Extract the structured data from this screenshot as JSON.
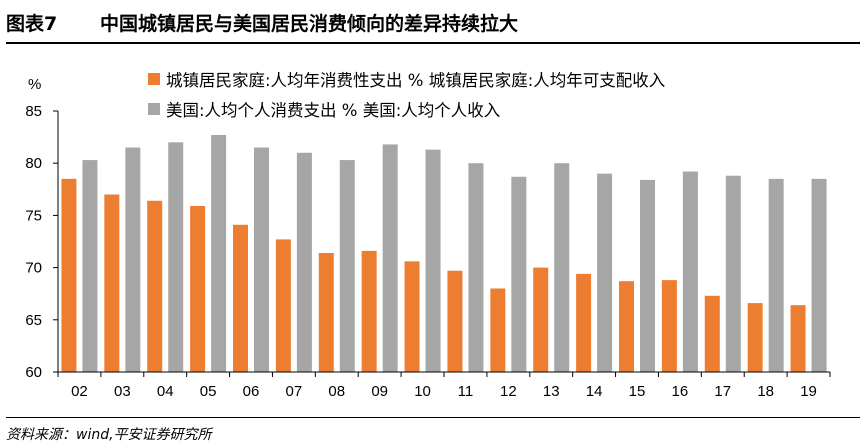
{
  "header": {
    "figure_label": "图表7",
    "title": "中国城镇居民与美国居民消费倾向的差异持续拉大"
  },
  "source": "资料来源：wind,平安证券研究所",
  "colors": {
    "china": "#ED7D31",
    "us": "#A6A6A6"
  },
  "chart_data": {
    "type": "bar",
    "title": "中国城镇居民与美国居民消费倾向的差异持续拉大",
    "ylabel": "%",
    "ylim": [
      60,
      85
    ],
    "yticks": [
      "60",
      "65",
      "70",
      "75",
      "80",
      "85"
    ],
    "grid": false,
    "legend_position": "top",
    "categories": [
      "02",
      "03",
      "04",
      "05",
      "06",
      "07",
      "08",
      "09",
      "10",
      "11",
      "12",
      "13",
      "14",
      "15",
      "16",
      "17",
      "18",
      "19"
    ],
    "series": [
      {
        "name": "城镇居民家庭:人均年消费性支出 % 城镇居民家庭:人均年可支配收入",
        "color": "#ED7D31",
        "values": [
          78.5,
          77.0,
          76.4,
          75.9,
          74.1,
          72.7,
          71.4,
          71.6,
          70.6,
          69.7,
          68.0,
          70.0,
          69.4,
          68.7,
          68.8,
          67.3,
          66.6,
          66.4
        ]
      },
      {
        "name": "美国:人均个人消费支出 % 美国:人均个人收入",
        "color": "#A6A6A6",
        "values": [
          80.3,
          81.5,
          82.0,
          82.7,
          81.5,
          81.0,
          80.3,
          81.8,
          81.3,
          80.0,
          78.7,
          80.0,
          79.0,
          78.4,
          79.2,
          78.8,
          78.5,
          78.5
        ]
      }
    ]
  }
}
